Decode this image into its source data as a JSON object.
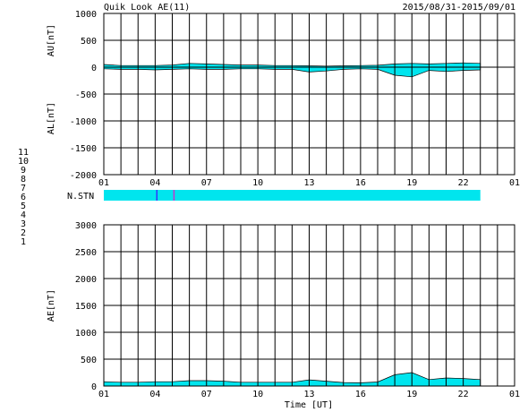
{
  "header": {
    "title": "Quik Look AE(11)",
    "date_range": "2015/08/31-2015/09/01"
  },
  "stations": {
    "label": "N.STN",
    "legend": [
      {
        "num": "11",
        "color": "#ff66ff"
      },
      {
        "num": "10",
        "color": "#ff33cc"
      },
      {
        "num": "9",
        "color": "#3333cc"
      },
      {
        "num": "8",
        "color": "#ffee66"
      },
      {
        "num": "7",
        "color": "#ccee55"
      },
      {
        "num": "6",
        "color": "#ff2222"
      },
      {
        "num": "5",
        "color": "#cccccc"
      },
      {
        "num": "4",
        "color": "#99dd99"
      },
      {
        "num": "3",
        "color": "#33cccc"
      },
      {
        "num": "2",
        "color": "#cc33cc"
      },
      {
        "num": "1",
        "color": "#3333ff"
      }
    ],
    "bar_color": "#00e5ee",
    "bar_start_hour": 1,
    "bar_end_hour": 23,
    "markers": [
      {
        "hour": 4.1,
        "color": "#3333ff"
      },
      {
        "hour": 5.1,
        "color": "#cc33cc"
      }
    ]
  },
  "chart_data": [
    {
      "type": "area",
      "id": "au-al",
      "ylabel_top": "AU[nT]",
      "ylabel_bottom": "AL[nT]",
      "ylim": [
        -2000,
        1000
      ],
      "yticks": [
        1000,
        500,
        0,
        -500,
        -1000,
        -1500,
        -2000
      ],
      "xlim": [
        1,
        25
      ],
      "xticks": [
        "01",
        "04",
        "07",
        "10",
        "13",
        "16",
        "19",
        "22",
        "01"
      ],
      "xtick_hours": [
        1,
        4,
        7,
        10,
        13,
        16,
        19,
        22,
        25
      ],
      "grid": true,
      "fill_color": "#00e5ee",
      "series": [
        {
          "name": "AU",
          "x": [
            1,
            2,
            3,
            4,
            5,
            6,
            7,
            8,
            9,
            10,
            11,
            12,
            13,
            14,
            15,
            16,
            17,
            18,
            19,
            20,
            21,
            22,
            23
          ],
          "values": [
            50,
            30,
            30,
            30,
            40,
            70,
            60,
            50,
            40,
            40,
            30,
            30,
            25,
            20,
            25,
            30,
            35,
            60,
            70,
            60,
            70,
            80,
            70
          ]
        },
        {
          "name": "AL",
          "x": [
            1,
            2,
            3,
            4,
            5,
            6,
            7,
            8,
            9,
            10,
            11,
            12,
            13,
            14,
            15,
            16,
            17,
            18,
            19,
            20,
            21,
            22,
            23
          ],
          "values": [
            -30,
            -40,
            -40,
            -50,
            -40,
            -30,
            -40,
            -40,
            -30,
            -30,
            -40,
            -40,
            -90,
            -70,
            -40,
            -30,
            -40,
            -150,
            -180,
            -60,
            -80,
            -60,
            -50
          ]
        }
      ]
    },
    {
      "type": "area",
      "id": "ae",
      "ylabel": "AE[nT]",
      "xlabel": "Time [UT]",
      "ylim": [
        0,
        3000
      ],
      "yticks": [
        3000,
        2500,
        2000,
        1500,
        1000,
        500,
        0
      ],
      "xlim": [
        1,
        25
      ],
      "xticks": [
        "01",
        "04",
        "07",
        "10",
        "13",
        "16",
        "19",
        "22",
        "01"
      ],
      "xtick_hours": [
        1,
        4,
        7,
        10,
        13,
        16,
        19,
        22,
        25
      ],
      "grid": true,
      "fill_color": "#00e5ee",
      "series": [
        {
          "name": "AE",
          "x": [
            1,
            2,
            3,
            4,
            5,
            6,
            7,
            8,
            9,
            10,
            11,
            12,
            13,
            14,
            15,
            16,
            17,
            18,
            19,
            20,
            21,
            22,
            23
          ],
          "values": [
            80,
            70,
            70,
            80,
            80,
            100,
            100,
            90,
            70,
            70,
            70,
            70,
            115,
            90,
            65,
            60,
            75,
            210,
            250,
            120,
            150,
            140,
            120
          ]
        }
      ]
    }
  ]
}
